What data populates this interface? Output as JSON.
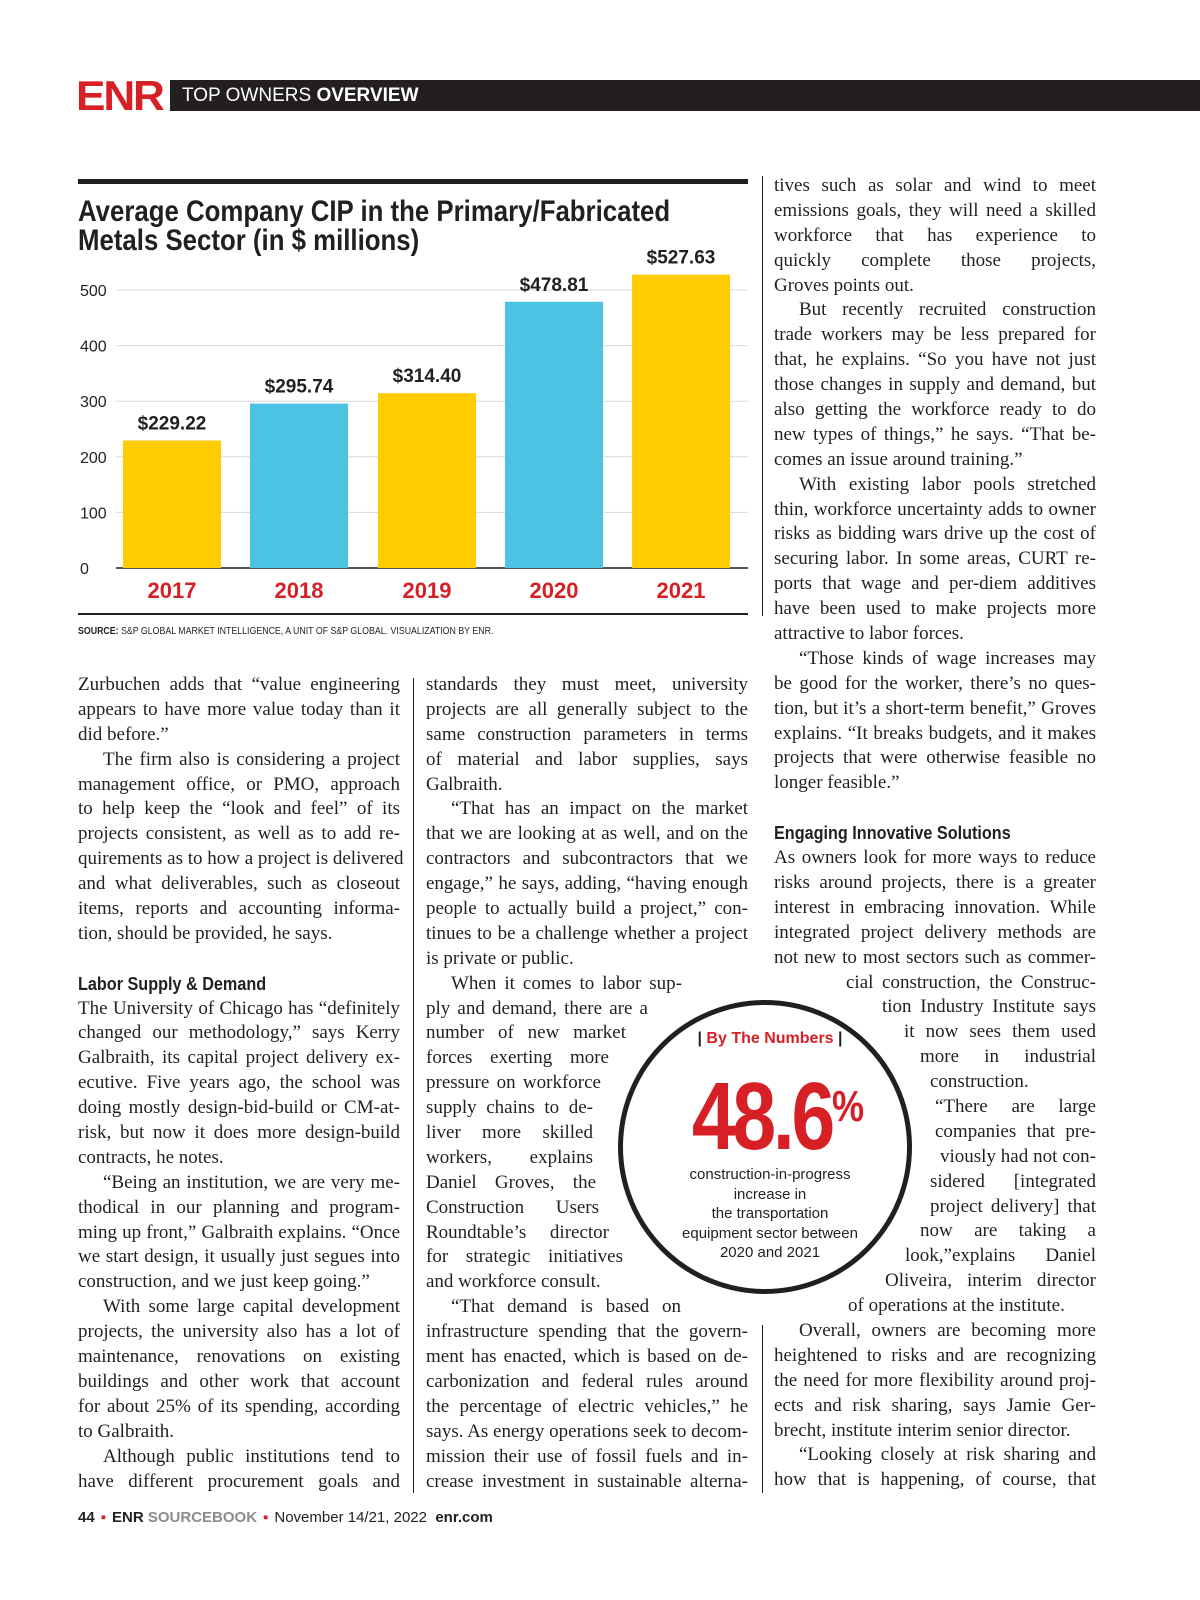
{
  "header": {
    "logo": "ENR",
    "section_light": "TOP OWNERS",
    "section_bold": "OVERVIEW"
  },
  "chart_data": {
    "type": "bar",
    "title_lines": [
      "Average Company CIP in the Primary/Fabricated",
      "Metals Sector (in $ millions)"
    ],
    "categories": [
      "2017",
      "2018",
      "2019",
      "2020",
      "2021"
    ],
    "values": [
      229.22,
      295.74,
      314.4,
      478.81,
      527.63
    ],
    "value_labels": [
      "$229.22",
      "$295.74",
      "$314.40",
      "$478.81",
      "$527.63"
    ],
    "bar_colors": [
      "#ffcc00",
      "#4cc3e2",
      "#ffcc00",
      "#4cc3e2",
      "#ffcc00"
    ],
    "category_color": "#d71f26",
    "yticks": [
      "0",
      "100",
      "200",
      "300",
      "400",
      "500"
    ],
    "ylim": [
      0,
      500
    ],
    "grid": true,
    "xlabel": "",
    "ylabel": "",
    "source_label": "SOURCE:",
    "source_text": "S&P GLOBAL MARKET INTELLIGENCE, A UNIT OF S&P GLOBAL. VISUALIZATION BY ENR."
  },
  "columns": [
    {
      "blocks": [
        {
          "type": "p",
          "continued": true,
          "lines": [
            "Zurbuchen adds that “value engineering",
            "appears to have more value today than it",
            "did before.”"
          ]
        },
        {
          "type": "p",
          "lines": [
            "The firm also is considering a project",
            "management office, or PMO, approach",
            "to help keep the “look and feel” of its",
            "projects consistent, as well as to add re-",
            "quirements as to how a project is delivered",
            "and what deliverables, such as closeout",
            "items, reports and accounting informa-",
            "tion, should be provided, he says."
          ]
        },
        {
          "type": "h",
          "text": "Labor Supply & Demand"
        },
        {
          "type": "p",
          "continued": true,
          "lines": [
            "The University of Chicago has “definitely",
            "changed our methodology,” says Kerry",
            "Galbraith, its capital project delivery ex-",
            "ecutive. Five years ago, the school was",
            "doing mostly design-bid-build or CM-at-",
            "risk, but now it does more design-build",
            "contracts, he notes."
          ]
        },
        {
          "type": "p",
          "lines": [
            "“Being an institution, we are very me-",
            "thodical in our planning and program-",
            "ming up front,” Galbraith explains. “Once",
            "we start design, it usually just segues into",
            "construction, and we just keep going.”"
          ]
        },
        {
          "type": "p",
          "lines": [
            "With some large capital development",
            "projects, the university also has a lot of",
            "maintenance, renovations on existing",
            "buildings and other work that account",
            "for about 25% of its spending, according",
            "to Galbraith."
          ]
        },
        {
          "type": "p",
          "open": true,
          "lines": [
            "Although public institutions tend to",
            "have different procurement goals and"
          ]
        }
      ]
    },
    {
      "blocks": [
        {
          "type": "p",
          "continued": true,
          "lines": [
            "standards they must meet, university",
            "projects are all generally subject to the",
            "same construction parameters in terms",
            "of material and labor supplies, says",
            "Galbraith."
          ]
        },
        {
          "type": "p",
          "lines": [
            "“That has an impact on the market",
            "that we are looking at as well, and on the",
            "contractors and subcontractors that we",
            "engage,” he says, adding, “having enough",
            "people to actually build a project,” con-",
            "tinues to be a challenge whether a project",
            "is private or public."
          ]
        },
        {
          "type": "p",
          "lines": [
            "When it comes to labor sup-",
            "ply and demand, there are a",
            "number of new market",
            "forces exerting more",
            "pressure on workforce",
            "supply chains to de-",
            "liver more skilled",
            "workers, explains",
            "Daniel Groves, the",
            "Construction Users",
            "Roundtable’s director",
            "for strategic initiatives",
            "and workforce consult."
          ]
        },
        {
          "type": "p",
          "open": true,
          "lines": [
            "“That demand is based on",
            "infrastructure spending that the govern-",
            "ment has enacted, which is based on de-",
            "carbonization and federal rules around",
            "the percentage of electric vehicles,” he",
            "says. As energy operations seek to decom-",
            "mission their use of fossil fuels and in-",
            "crease investment in sustainable alterna-"
          ]
        }
      ]
    },
    {
      "blocks": [
        {
          "type": "p",
          "continued": true,
          "lines": [
            "tives such as solar and wind to meet",
            "emissions goals, they will need a skilled",
            "workforce that has experience to",
            "quickly complete those projects,",
            "Groves points out."
          ]
        },
        {
          "type": "p",
          "lines": [
            "But recently recruited construction",
            "trade workers may be less prepared for",
            "that, he explains. “So you have not just",
            "those changes in supply and demand, but",
            "also getting the workforce ready to do",
            "new types of things,” he says. “That be-",
            "comes an issue around training.”"
          ]
        },
        {
          "type": "p",
          "lines": [
            "With existing labor pools stretched",
            "thin, workforce uncertainty adds to owner",
            "risks as bidding wars drive up the cost of",
            "securing labor. In some areas, CURT re-",
            "ports that wage and per-diem additives",
            "have been used to make projects more",
            "attractive to labor forces."
          ]
        },
        {
          "type": "p",
          "lines": [
            "“Those kinds of wage increases may",
            "be good for the worker, there’s no ques-",
            "tion, but it’s a short-term benefit,” Groves",
            "explains. “It breaks budgets, and it makes",
            "projects that were otherwise feasible no",
            "longer feasible.”"
          ]
        },
        {
          "type": "h",
          "text": "Engaging Innovative Solutions"
        },
        {
          "type": "p",
          "continued": true,
          "lines": [
            "As owners look for more ways to reduce",
            "risks around projects, there is a greater",
            "interest in embracing innovation. While",
            "integrated project delivery methods are",
            "not new to most sectors such as commer-",
            "cial construction, the Construc-",
            "tion Industry Institute says",
            "it now sees them used",
            "more in industrial",
            "construction."
          ]
        },
        {
          "type": "p",
          "lines": [
            "“There are large",
            "companies that pre-",
            "viously had not con-",
            "sidered [integrated",
            "project delivery] that",
            "now are taking a",
            "look,”explains Daniel",
            "Oliveira, interim director",
            "of operations at the institute."
          ]
        },
        {
          "type": "p",
          "lines": [
            "Overall, owners are becoming more",
            "heightened to risks and are recognizing",
            "the need for more flexibility around proj-",
            "ects and risk sharing, says Jamie Ger-",
            "brecht, institute interim senior director."
          ]
        },
        {
          "type": "p",
          "open": true,
          "lines": [
            "“Looking closely at risk sharing and",
            "how that is happening, of course, that"
          ]
        }
      ]
    }
  ],
  "callout": {
    "label": "By The Numbers",
    "pipe": "|",
    "number": "48.6",
    "unit": "%",
    "caption_lines": [
      "construction-in-progress",
      "increase in",
      "the transportation",
      "equipment sector between",
      "2020 and 2021"
    ]
  },
  "footer": {
    "page": "44",
    "brand": "ENR",
    "publication": "SOURCEBOOK",
    "date": "November 14/21, 2022",
    "site": "enr.com",
    "separator": "▪"
  }
}
